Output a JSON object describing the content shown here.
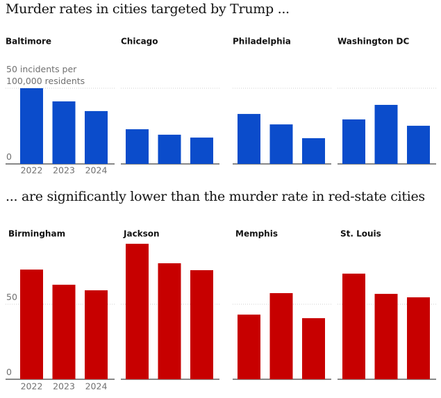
{
  "chart_data": [
    {
      "type": "bar",
      "title": "Murder rates in cities targeted by Trump ...",
      "color": "#0b4ccb",
      "categories": [
        "2022",
        "2023",
        "2024"
      ],
      "ylim": [
        0,
        50
      ],
      "yticks": [
        0,
        {
          "value": 50,
          "label": "50 incidents per 100,000 residents"
        }
      ],
      "grid": true,
      "series": [
        {
          "name": "Baltimore",
          "values": [
            50,
            41.3,
            34.9
          ]
        },
        {
          "name": "Chicago",
          "values": [
            22.9,
            19.3,
            17.4
          ]
        },
        {
          "name": "Philadelphia",
          "values": [
            33,
            26.1,
            17
          ]
        },
        {
          "name": "Washington DC",
          "values": [
            29.4,
            39,
            25.2
          ]
        }
      ]
    },
    {
      "type": "bar",
      "title": "... are significantly lower than the murder rate in red-state cities",
      "color": "#c70000",
      "categories": [
        "2022",
        "2023",
        "2024"
      ],
      "ylim": [
        0,
        100
      ],
      "yticks": [
        0,
        50
      ],
      "grid": true,
      "series": [
        {
          "name": "Birmingham",
          "values": [
            73.1,
            63,
            59.3
          ]
        },
        {
          "name": "Jackson",
          "values": [
            90.3,
            77.3,
            72.7
          ]
        },
        {
          "name": "Memphis",
          "values": [
            43.1,
            57.4,
            40.7
          ]
        },
        {
          "name": "St. Louis",
          "values": [
            70.4,
            56.9,
            54.6
          ]
        }
      ]
    }
  ]
}
